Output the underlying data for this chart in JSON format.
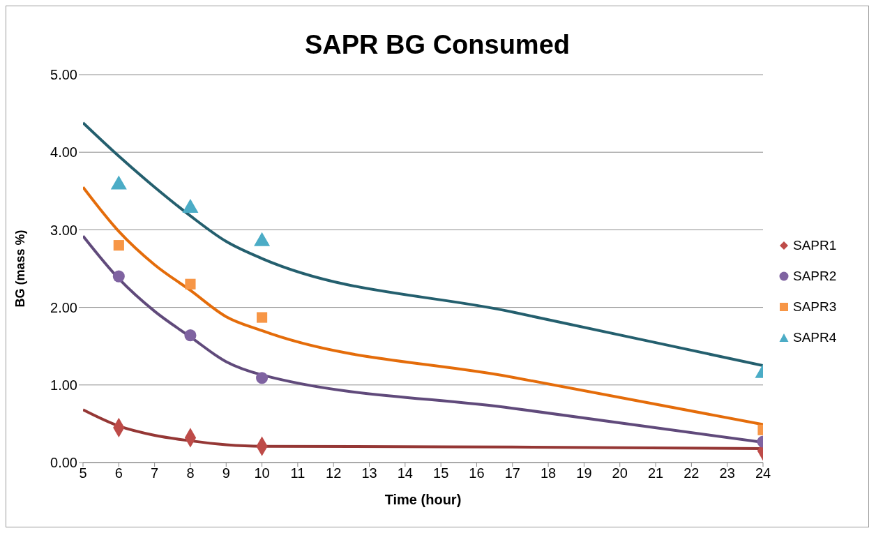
{
  "chart_data": {
    "type": "scatter",
    "title": "SAPR BG Consumed",
    "xlabel": "Time (hour)",
    "ylabel": "BG  (mass %)",
    "xlim": [
      5,
      24
    ],
    "xticks": [
      5,
      6,
      7,
      8,
      9,
      10,
      11,
      12,
      13,
      14,
      15,
      16,
      17,
      18,
      19,
      20,
      21,
      22,
      23,
      24
    ],
    "ylim": [
      0,
      5
    ],
    "yticks": [
      {
        "value": 0,
        "label": "0.00"
      },
      {
        "value": 1,
        "label": "1.00"
      },
      {
        "value": 2,
        "label": "2.00"
      },
      {
        "value": 3,
        "label": "3.00"
      },
      {
        "value": 4,
        "label": "4.00"
      },
      {
        "value": 5,
        "label": "5.00"
      }
    ],
    "grid": "y",
    "legend": "right",
    "series": [
      {
        "name": "SAPR1",
        "marker": "diamond",
        "color": "#be4b48",
        "x": [
          6,
          8,
          10,
          24
        ],
        "values": [
          0.45,
          0.32,
          0.21,
          0.15
        ]
      },
      {
        "name": "SAPR2",
        "marker": "circle",
        "color": "#7f63a1",
        "x": [
          6,
          8,
          10,
          24
        ],
        "values": [
          2.4,
          1.64,
          1.09,
          0.27
        ]
      },
      {
        "name": "SAPR3",
        "marker": "square",
        "color": "#f79646",
        "x": [
          6,
          8,
          10,
          24
        ],
        "values": [
          2.8,
          2.3,
          1.87,
          0.42
        ]
      },
      {
        "name": "SAPR4",
        "marker": "triangle",
        "color": "#4bacc6",
        "x": [
          6,
          8,
          10,
          24
        ],
        "values": [
          3.58,
          3.28,
          2.85,
          1.15
        ]
      },
      {
        "type": "line",
        "marker": "none",
        "color": "#953735",
        "x": [
          5,
          6,
          7,
          8,
          9,
          10,
          17,
          24
        ],
        "values": [
          0.68,
          0.47,
          0.35,
          0.28,
          0.23,
          0.21,
          0.2,
          0.18
        ]
      },
      {
        "type": "line",
        "marker": "none",
        "color": "#604a7b",
        "x": [
          5,
          6,
          7,
          8,
          9,
          10,
          17,
          24
        ],
        "values": [
          2.92,
          2.37,
          1.95,
          1.62,
          1.3,
          1.13,
          0.7,
          0.26
        ]
      },
      {
        "type": "line",
        "marker": "none",
        "color": "#e46c0a",
        "x": [
          5,
          6,
          7,
          8,
          9,
          10,
          17,
          24
        ],
        "values": [
          3.55,
          2.98,
          2.55,
          2.22,
          1.88,
          1.7,
          1.1,
          0.49
        ]
      },
      {
        "type": "line",
        "marker": "none",
        "color": "#245f6e",
        "x": [
          5,
          6,
          7,
          8,
          9,
          10,
          17,
          24
        ],
        "values": [
          4.38,
          3.95,
          3.55,
          3.18,
          2.85,
          2.63,
          1.94,
          1.25
        ]
      }
    ]
  }
}
